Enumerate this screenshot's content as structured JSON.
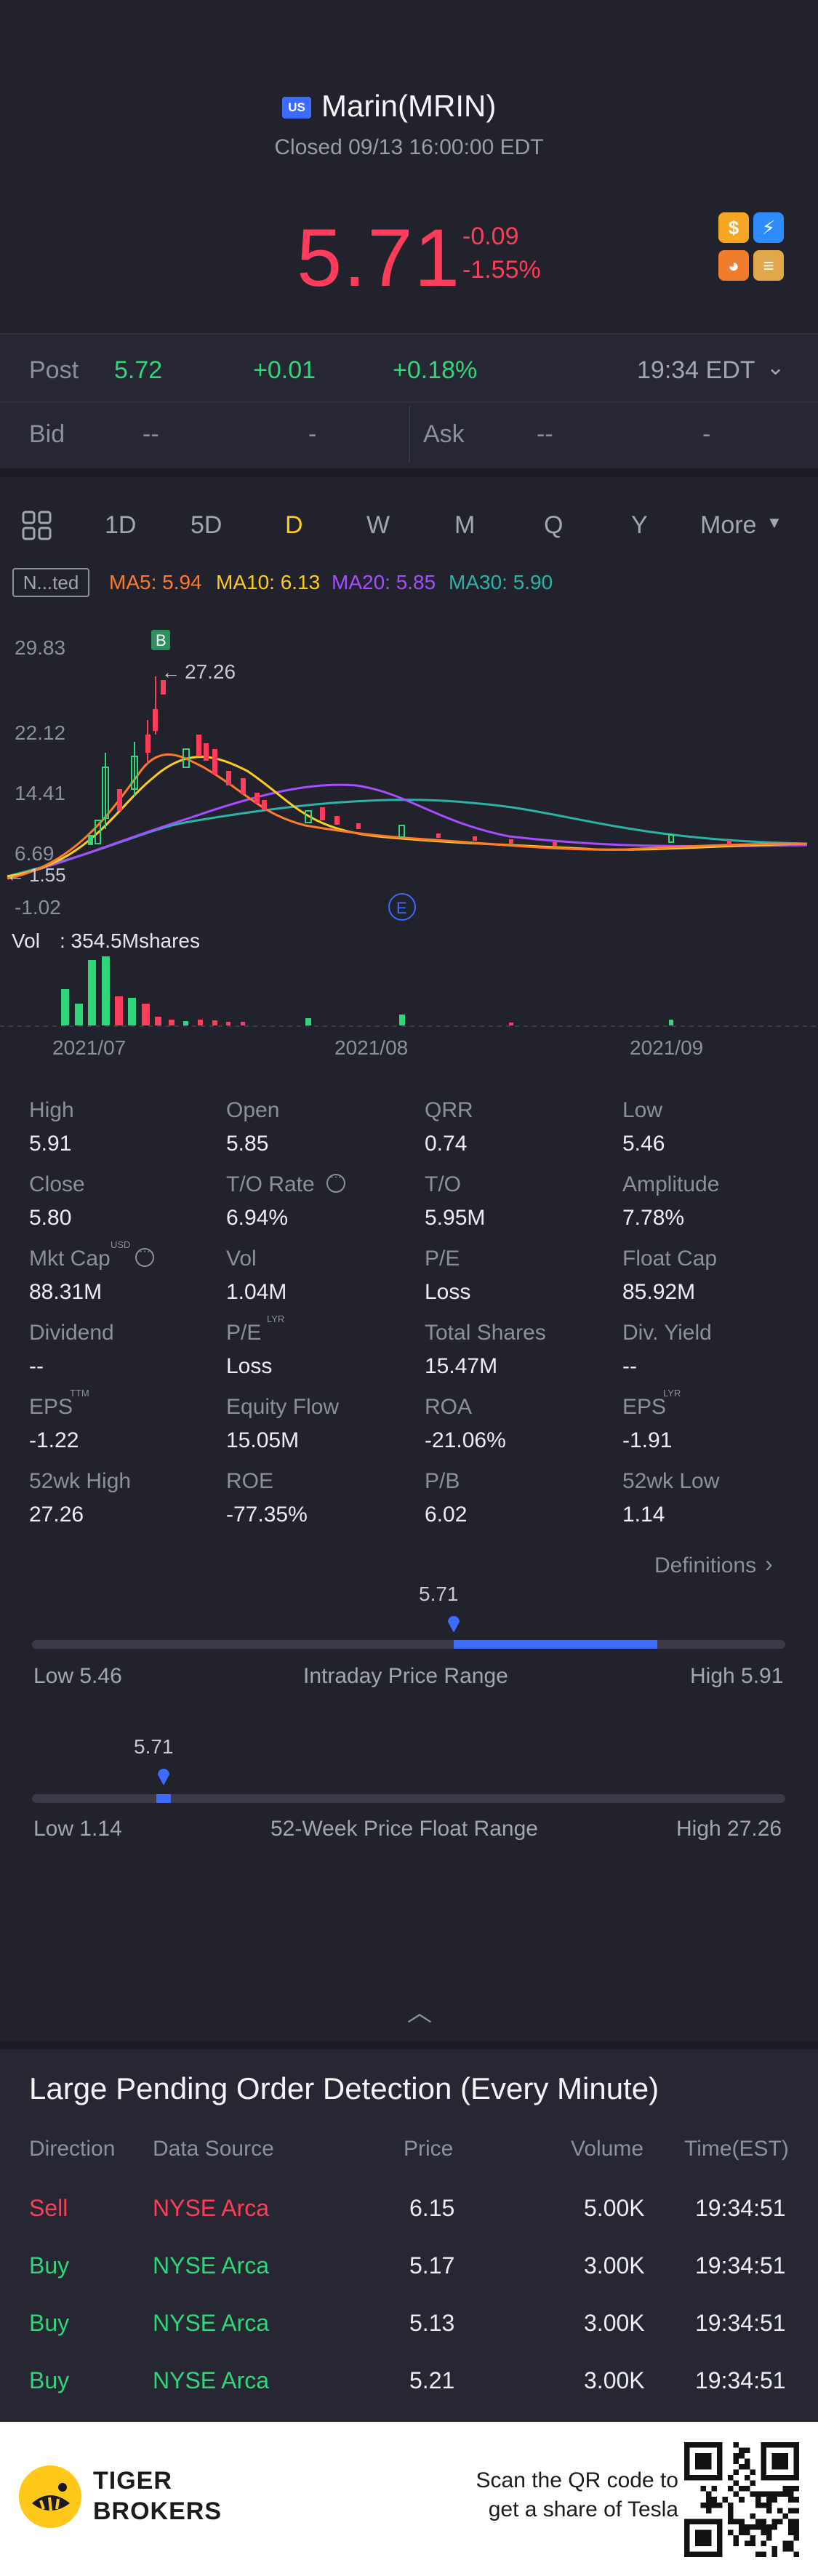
{
  "header": {
    "market_badge": "US",
    "name": "Marin(MRIN)",
    "status": "Closed 09/13 16:00:00 EDT",
    "price": "5.71",
    "change": "-0.09",
    "change_pct": "-1.55%",
    "icons": [
      "dollar-icon",
      "flash-icon",
      "fox-icon",
      "stack-icon"
    ]
  },
  "post": {
    "label": "Post",
    "price": "5.72",
    "change": "+0.01",
    "change_pct": "+0.18%",
    "time": "19:34 EDT"
  },
  "bid_ask": {
    "bid_label": "Bid",
    "bid_price": "--",
    "bid_size": "-",
    "ask_label": "Ask",
    "ask_price": "--",
    "ask_size": "-"
  },
  "tabs": {
    "items": [
      "1D",
      "5D",
      "D",
      "W",
      "M",
      "Q",
      "Y",
      "More"
    ],
    "active": "D"
  },
  "indicators": {
    "adjust_label": "N...ted",
    "ma5": "MA5: 5.94",
    "ma10": "MA10: 6.13",
    "ma20": "MA20: 5.85",
    "ma30": "MA30: 5.90",
    "colors": {
      "ma5": "#ff7a2a",
      "ma10": "#ffcb1f",
      "ma20": "#a64dff",
      "ma30": "#2bb3a8"
    }
  },
  "chart_data": {
    "type": "candlestick",
    "y_ticks": [
      "29.83",
      "22.12",
      "14.41",
      "6.69",
      "-1.02"
    ],
    "x_ticks": [
      "2021/07",
      "2021/08",
      "2021/09"
    ],
    "max_label": "27.26",
    "min_label": "1.55",
    "buy_marker": "B",
    "event_marker": "E",
    "volume_label": "Vol",
    "volume_value": ": 354.5Mshares"
  },
  "stats": [
    {
      "label": "High",
      "value": "5.91"
    },
    {
      "label": "Open",
      "value": "5.85"
    },
    {
      "label": "QRR",
      "value": "0.74"
    },
    {
      "label": "Low",
      "value": "5.46"
    },
    {
      "label": "Close",
      "value": "5.80"
    },
    {
      "label": "T/O Rate",
      "value": "6.94%"
    },
    {
      "label": "T/O",
      "value": "5.95M"
    },
    {
      "label": "Amplitude",
      "value": "7.78%"
    },
    {
      "label": "Mkt Cap",
      "value": "88.31M",
      "sup": "USD"
    },
    {
      "label": "Vol",
      "value": "1.04M"
    },
    {
      "label": "P/E",
      "value": "Loss"
    },
    {
      "label": "Float Cap",
      "value": "85.92M"
    },
    {
      "label": "Dividend",
      "value": "--"
    },
    {
      "label": "P/E",
      "value": "Loss",
      "sup": "LYR"
    },
    {
      "label": "Total Shares",
      "value": "15.47M"
    },
    {
      "label": "Div. Yield",
      "value": "--"
    },
    {
      "label": "EPS",
      "value": "-1.22",
      "sup": "TTM"
    },
    {
      "label": "Equity Flow",
      "value": "15.05M"
    },
    {
      "label": "ROA",
      "value": "-21.06%"
    },
    {
      "label": "EPS",
      "value": "-1.91",
      "sup": "LYR"
    },
    {
      "label": "52wk High",
      "value": "27.26"
    },
    {
      "label": "ROE",
      "value": "-77.35%"
    },
    {
      "label": "P/B",
      "value": "6.02"
    },
    {
      "label": "52wk Low",
      "value": "1.14"
    }
  ],
  "definitions_link": "Definitions",
  "intraday": {
    "current": "5.71",
    "low": "Low 5.46",
    "title": "Intraday Price Range",
    "high": "High 5.91",
    "position_pct": 56.0
  },
  "week52": {
    "current": "5.71",
    "low": "Low 1.14",
    "title": "52-Week Price Float Range",
    "high": "High 27.26",
    "position_pct": 17.5
  },
  "pending": {
    "title": "Large Pending Order Detection (Every Minute)",
    "headers": [
      "Direction",
      "Data Source",
      "Price",
      "Volume",
      "Time(EST)"
    ],
    "rows": [
      {
        "direction": "Sell",
        "source": "NYSE Arca",
        "price": "6.15",
        "volume": "5.00K",
        "time": "19:34:51"
      },
      {
        "direction": "Buy",
        "source": "NYSE Arca",
        "price": "5.17",
        "volume": "3.00K",
        "time": "19:34:51"
      },
      {
        "direction": "Buy",
        "source": "NYSE Arca",
        "price": "5.13",
        "volume": "3.00K",
        "time": "19:34:51"
      },
      {
        "direction": "Buy",
        "source": "NYSE Arca",
        "price": "5.21",
        "volume": "3.00K",
        "time": "19:34:51"
      }
    ]
  },
  "footer": {
    "brand_line1": "TIGER",
    "brand_line2": "BROKERS",
    "scan_line1": "Scan the QR code to",
    "scan_line2": "get a share of Tesla"
  }
}
